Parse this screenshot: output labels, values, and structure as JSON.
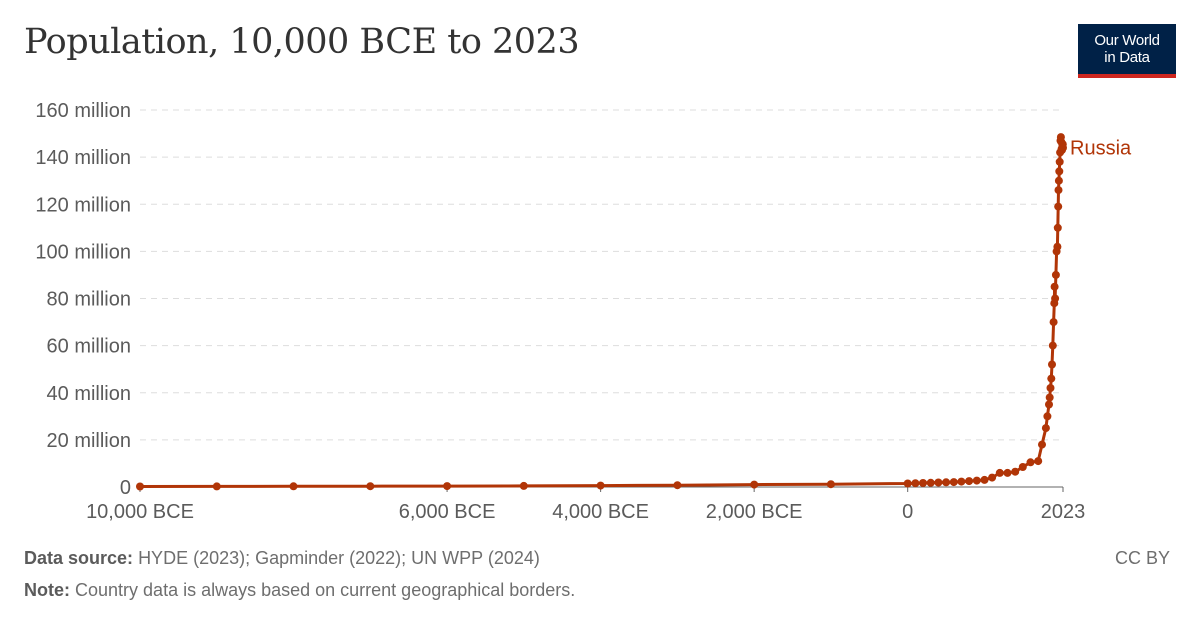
{
  "header": {
    "title": "Population, 10,000 BCE to 2023",
    "logo_line1": "Our World",
    "logo_line2": "in Data"
  },
  "footer": {
    "source_label": "Data source:",
    "source_text": "HYDE (2023); Gapminder (2022); UN WPP (2024)",
    "note_label": "Note:",
    "note_text": "Country data is always based on current geographical borders.",
    "license": "CC BY"
  },
  "colors": {
    "series": "#b13507",
    "grid": "#dddddd",
    "axis": "#666666",
    "logo_bg": "#002147",
    "logo_accent": "#ce261e"
  },
  "chart_data": {
    "type": "line",
    "xlim": [
      -10000,
      2023
    ],
    "ylim": [
      0,
      160000000
    ],
    "y_ticks": [
      {
        "value": 0,
        "label": "0"
      },
      {
        "value": 20000000,
        "label": "20 million"
      },
      {
        "value": 40000000,
        "label": "40 million"
      },
      {
        "value": 60000000,
        "label": "60 million"
      },
      {
        "value": 80000000,
        "label": "80 million"
      },
      {
        "value": 100000000,
        "label": "100 million"
      },
      {
        "value": 120000000,
        "label": "120 million"
      },
      {
        "value": 140000000,
        "label": "140 million"
      },
      {
        "value": 160000000,
        "label": "160 million"
      }
    ],
    "x_ticks": [
      {
        "value": -10000,
        "label": "10,000 BCE"
      },
      {
        "value": -6000,
        "label": "6,000 BCE"
      },
      {
        "value": -4000,
        "label": "4,000 BCE"
      },
      {
        "value": -2000,
        "label": "2,000 BCE"
      },
      {
        "value": 0,
        "label": "0"
      },
      {
        "value": 2023,
        "label": "2023"
      }
    ],
    "grid": true,
    "series": [
      {
        "name": "Russia",
        "x": [
          -10000,
          -9000,
          -8000,
          -7000,
          -6000,
          -5000,
          -4000,
          -3000,
          -2000,
          -1000,
          0,
          100,
          200,
          300,
          400,
          500,
          600,
          700,
          800,
          900,
          1000,
          1100,
          1200,
          1300,
          1400,
          1500,
          1600,
          1700,
          1750,
          1800,
          1820,
          1840,
          1850,
          1860,
          1870,
          1880,
          1890,
          1900,
          1910,
          1913,
          1920,
          1930,
          1940,
          1950,
          1955,
          1960,
          1965,
          1970,
          1975,
          1980,
          1985,
          1990,
          1995,
          2000,
          2005,
          2010,
          2015,
          2020,
          2023
        ],
        "values": [
          200000,
          250000,
          300000,
          350000,
          400000,
          450000,
          600000,
          750000,
          1000000,
          1200000,
          1500000,
          1600000,
          1700000,
          1800000,
          1900000,
          2000000,
          2100000,
          2300000,
          2500000,
          2700000,
          3000000,
          4000000,
          6000000,
          6000000,
          6500000,
          8500000,
          10500000,
          11000000,
          18000000,
          25000000,
          30000000,
          35000000,
          38000000,
          42000000,
          46000000,
          52000000,
          60000000,
          70000000,
          78000000,
          85000000,
          80000000,
          90000000,
          100000000,
          102000000,
          110000000,
          119000000,
          126000000,
          130000000,
          134000000,
          138000000,
          142000000,
          147000000,
          148500000,
          146500000,
          143500000,
          143000000,
          144500000,
          145500000,
          144000000
        ]
      }
    ]
  }
}
